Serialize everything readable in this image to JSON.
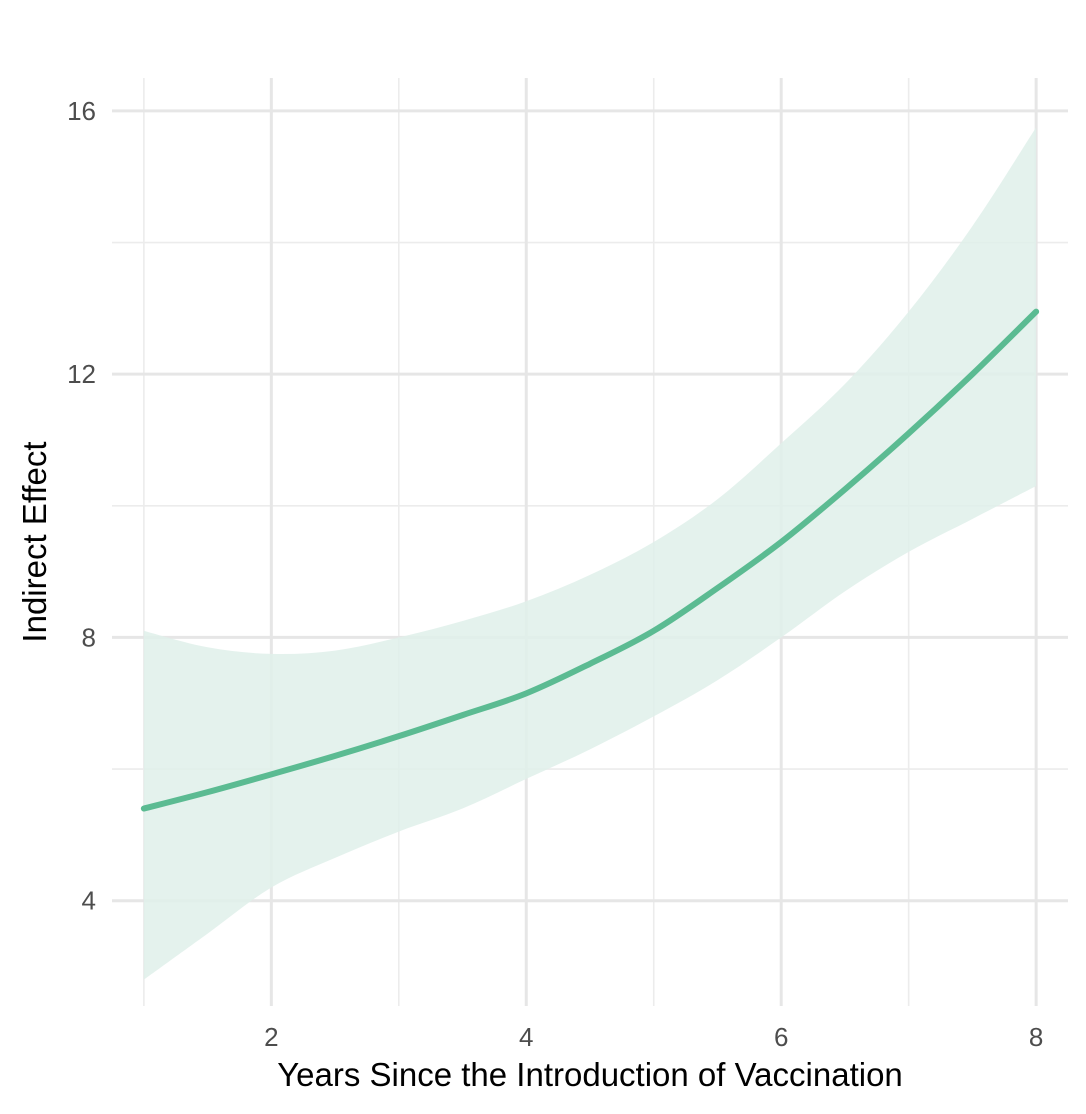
{
  "chart_data": {
    "type": "line",
    "title": "",
    "xlabel": "Years Since the Introduction of Vaccination",
    "ylabel": "Indirect Effect",
    "xlim": [
      0.75,
      8.25
    ],
    "ylim": [
      2.4,
      16.5
    ],
    "x_major_ticks": [
      2,
      4,
      6,
      8
    ],
    "x_minor_ticks": [
      1,
      3,
      5,
      7
    ],
    "y_major_ticks": [
      4,
      8,
      12,
      16
    ],
    "y_minor_ticks": [
      6,
      10,
      14
    ],
    "grid": true,
    "legend": "none",
    "series": [
      {
        "x": [
          1,
          1.5,
          2,
          2.5,
          3,
          3.5,
          4,
          4.5,
          5,
          5.5,
          6,
          6.5,
          7,
          7.5,
          8
        ],
        "y": [
          5.4,
          5.65,
          5.92,
          6.2,
          6.5,
          6.82,
          7.15,
          7.6,
          8.1,
          8.75,
          9.45,
          10.25,
          11.1,
          12.0,
          12.95
        ],
        "lower": [
          2.8,
          3.5,
          4.2,
          4.65,
          5.05,
          5.4,
          5.85,
          6.3,
          6.8,
          7.35,
          8.0,
          8.7,
          9.3,
          9.8,
          10.3
        ],
        "upper": [
          8.1,
          7.85,
          7.75,
          7.8,
          8.0,
          8.25,
          8.55,
          8.95,
          9.45,
          10.1,
          10.95,
          11.85,
          12.95,
          14.25,
          15.75
        ]
      }
    ],
    "colors": {
      "line": "#5bbb92",
      "band": "#dff0ea",
      "grid_major": "#e6e6e6",
      "grid_minor": "#ececec"
    }
  }
}
